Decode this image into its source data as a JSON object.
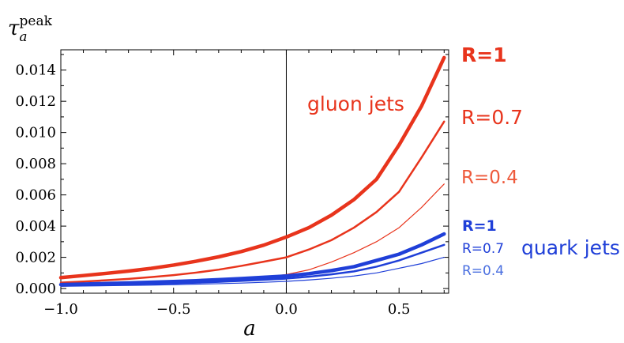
{
  "chart_data": {
    "type": "line",
    "ylabel": "τ",
    "ylabel_sub": "a",
    "ylabel_sup": "peak",
    "xlabel": "a",
    "xlim": [
      -1.0,
      0.72
    ],
    "ylim": [
      -0.0003,
      0.0153
    ],
    "x_ticks": [
      -1.0,
      -0.5,
      0.0,
      0.5
    ],
    "x_tick_labels": [
      "−1.0",
      "−0.5",
      "0.0",
      "0.5"
    ],
    "y_ticks": [
      0.0,
      0.002,
      0.004,
      0.006,
      0.008,
      0.01,
      0.012,
      0.014
    ],
    "y_tick_labels": [
      "0.000",
      "0.002",
      "0.004",
      "0.006",
      "0.008",
      "0.010",
      "0.012",
      "0.014"
    ],
    "vertical_line_x": 0.0,
    "grid": false,
    "x": [
      -1.0,
      -0.9,
      -0.8,
      -0.7,
      -0.6,
      -0.5,
      -0.4,
      -0.3,
      -0.2,
      -0.1,
      0.0,
      0.1,
      0.2,
      0.3,
      0.4,
      0.5,
      0.6,
      0.7
    ],
    "series": [
      {
        "name": "R=1",
        "group": "gluon jets",
        "color": "#e8341c",
        "width": 4.5,
        "values": [
          0.0007,
          0.00083,
          0.00097,
          0.00112,
          0.00129,
          0.0015,
          0.00175,
          0.00203,
          0.00237,
          0.00278,
          0.0033,
          0.0039,
          0.0047,
          0.0057,
          0.007,
          0.0092,
          0.0117,
          0.0148
        ]
      },
      {
        "name": "R=0.7",
        "group": "gluon jets",
        "color": "#e8341c",
        "width": 2.5,
        "values": [
          0.00038,
          0.00045,
          0.00053,
          0.00062,
          0.00073,
          0.00086,
          0.00102,
          0.00121,
          0.00145,
          0.00172,
          0.002,
          0.0025,
          0.0031,
          0.0039,
          0.0049,
          0.0062,
          0.0084,
          0.0107
        ]
      },
      {
        "name": "R=0.4",
        "group": "gluon jets",
        "color": "#e8341c",
        "width": 1.2,
        "values": [
          0.00015,
          0.00018,
          0.00021,
          0.00025,
          0.0003,
          0.00036,
          0.00043,
          0.00051,
          0.00061,
          0.00073,
          0.0009,
          0.0012,
          0.0017,
          0.0023,
          0.003,
          0.0039,
          0.0052,
          0.0067
        ]
      },
      {
        "name": "R=1",
        "group": "quark jets",
        "color": "#1f3fd8",
        "width": 4.5,
        "values": [
          0.00025,
          0.00028,
          0.00032,
          0.00036,
          0.0004,
          0.00045,
          0.0005,
          0.00057,
          0.00064,
          0.00072,
          0.0008,
          0.00095,
          0.00115,
          0.0014,
          0.0018,
          0.0022,
          0.0028,
          0.0035
        ]
      },
      {
        "name": "R=0.7",
        "group": "quark jets",
        "color": "#1f3fd8",
        "width": 2.5,
        "values": [
          0.0002,
          0.00022,
          0.00025,
          0.00028,
          0.00031,
          0.00034,
          0.00038,
          0.00043,
          0.00049,
          0.00056,
          0.00064,
          0.00076,
          0.00091,
          0.0011,
          0.0014,
          0.0018,
          0.0023,
          0.0028
        ]
      },
      {
        "name": "R=0.4",
        "group": "quark jets",
        "color": "#1f3fd8",
        "width": 1.2,
        "values": [
          0.00014,
          0.00016,
          0.00018,
          0.0002,
          0.00022,
          0.00025,
          0.00028,
          0.00031,
          0.00035,
          0.0004,
          0.00046,
          0.00055,
          0.00066,
          0.0008,
          0.001,
          0.0013,
          0.0016,
          0.002
        ]
      }
    ],
    "annotations": {
      "gluon_jets": "gluon jets",
      "quark_jets": "quark jets",
      "gluon_r1": "R=1",
      "gluon_r07": "R=0.7",
      "gluon_r04": "R=0.4",
      "quark_r1": "R=1",
      "quark_r07": "R=0.7",
      "quark_r04": "R=0.4"
    }
  }
}
